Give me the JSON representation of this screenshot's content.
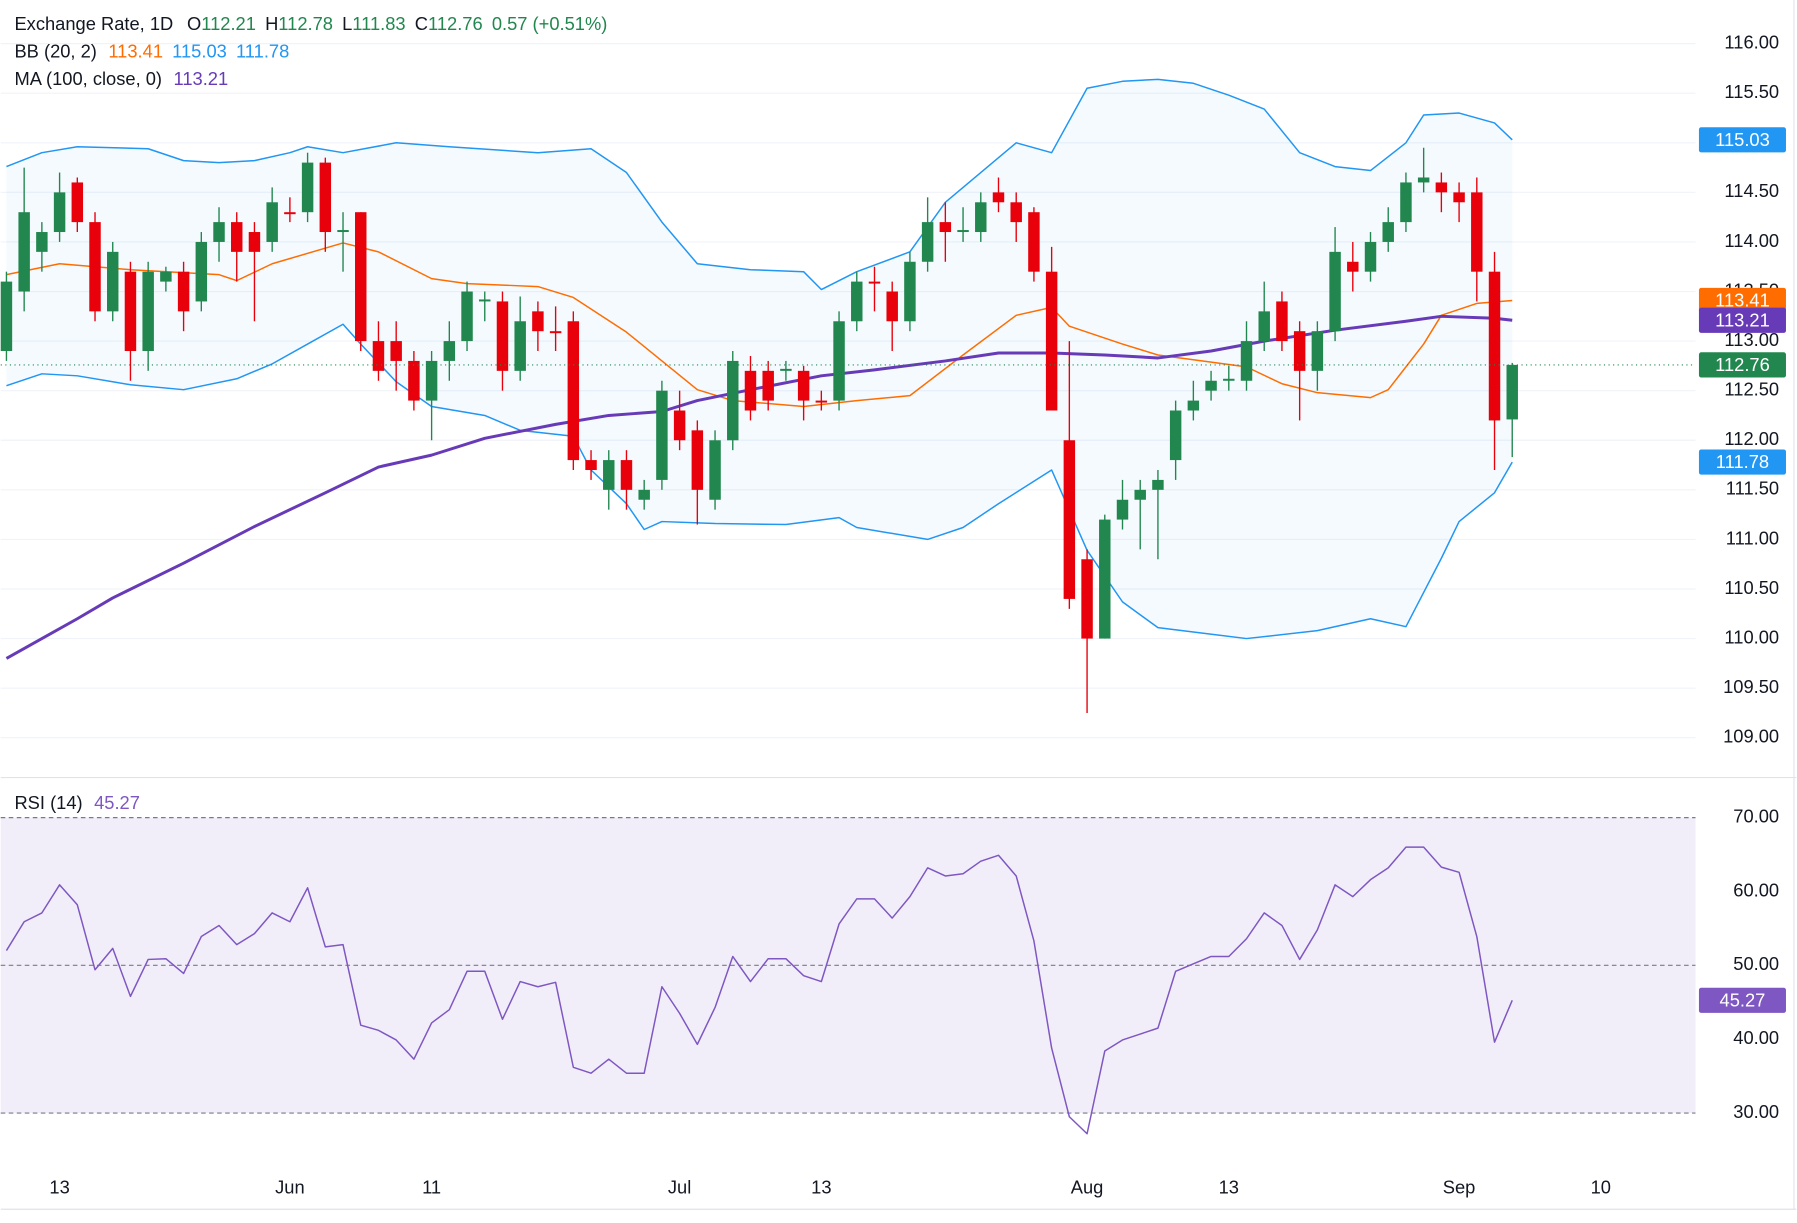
{
  "chart_data": {
    "type": "candlestick",
    "title": "Exchange Rate, 1D",
    "ohlc_keys": [
      "O",
      "H",
      "L",
      "C"
    ],
    "change": "0.57 (+0.51%)",
    "up_color": "#22874f",
    "down_color": "#e8000b",
    "categories": [
      null,
      null,
      null,
      "13",
      null,
      null,
      null,
      null,
      null,
      null,
      null,
      null,
      null,
      null,
      null,
      null,
      "Jun",
      null,
      null,
      null,
      null,
      null,
      null,
      null,
      "11",
      null,
      null,
      null,
      null,
      null,
      null,
      null,
      null,
      null,
      null,
      null,
      null,
      null,
      "Jul",
      null,
      null,
      null,
      null,
      null,
      null,
      null,
      "13",
      null,
      null,
      null,
      null,
      null,
      null,
      null,
      null,
      null,
      null,
      null,
      null,
      null,
      null,
      "Aug",
      null,
      null,
      null,
      null,
      null,
      null,
      null,
      "13",
      null,
      null,
      null,
      null,
      null,
      null,
      null,
      null,
      null,
      null,
      null,
      null,
      "Sep",
      null,
      null,
      null,
      null,
      null,
      null,
      null,
      "10"
    ],
    "open": [
      112.9,
      113.5,
      113.9,
      114.1,
      114.6,
      114.2,
      113.3,
      113.7,
      112.9,
      113.6,
      113.7,
      113.4,
      114.0,
      114.2,
      114.1,
      114.0,
      114.3,
      114.3,
      114.8,
      114.1,
      114.3,
      113.0,
      113.0,
      112.8,
      112.4,
      112.8,
      113.0,
      113.4,
      113.4,
      112.7,
      113.3,
      113.1,
      113.2,
      111.8,
      111.5,
      111.8,
      111.4,
      111.6,
      112.3,
      112.1,
      111.4,
      112.0,
      112.7,
      112.7,
      112.7,
      112.7,
      112.4,
      112.4,
      113.2,
      113.6,
      113.5,
      113.2,
      113.8,
      114.2,
      114.1,
      114.1,
      114.5,
      114.4,
      114.3,
      113.7,
      112.0,
      110.8,
      110.0,
      111.2,
      111.4,
      111.5,
      111.8,
      112.3,
      112.5,
      112.6,
      112.6,
      113.0,
      113.4,
      113.1,
      112.7,
      113.1,
      113.8,
      113.7,
      114.0,
      114.2,
      114.6,
      114.6,
      114.5,
      114.5,
      113.7,
      112.21,
      null,
      null,
      null,
      null,
      null
    ],
    "high": [
      113.7,
      114.75,
      114.2,
      114.7,
      114.65,
      114.3,
      114.0,
      113.8,
      113.8,
      113.75,
      113.8,
      114.1,
      114.35,
      114.3,
      114.2,
      114.55,
      114.45,
      114.9,
      114.85,
      114.3,
      114.3,
      113.2,
      113.2,
      112.9,
      112.9,
      113.2,
      113.6,
      113.5,
      113.5,
      113.45,
      113.4,
      113.35,
      113.3,
      111.9,
      111.9,
      111.9,
      111.6,
      112.6,
      112.5,
      112.2,
      112.1,
      112.9,
      112.85,
      112.8,
      112.8,
      112.75,
      112.5,
      113.3,
      113.7,
      113.75,
      113.6,
      113.9,
      114.45,
      114.4,
      114.35,
      114.5,
      114.65,
      114.5,
      114.35,
      113.95,
      113.0,
      110.9,
      111.25,
      111.6,
      111.6,
      111.7,
      112.4,
      112.6,
      112.7,
      112.75,
      113.2,
      113.6,
      113.5,
      113.2,
      113.2,
      114.15,
      114.0,
      114.1,
      114.35,
      114.7,
      114.95,
      114.7,
      114.6,
      114.65,
      113.9,
      112.78,
      null,
      null,
      null,
      null,
      null
    ],
    "low": [
      112.8,
      113.3,
      113.7,
      114.0,
      114.1,
      113.2,
      113.2,
      112.6,
      112.7,
      113.5,
      113.1,
      113.3,
      113.8,
      113.6,
      113.2,
      113.9,
      114.2,
      114.2,
      113.9,
      113.7,
      112.9,
      112.6,
      112.5,
      112.3,
      112.0,
      112.6,
      112.9,
      113.2,
      112.5,
      112.6,
      112.9,
      112.9,
      111.7,
      111.6,
      111.3,
      111.3,
      111.3,
      111.5,
      111.9,
      111.15,
      111.3,
      111.9,
      112.2,
      112.3,
      112.6,
      112.2,
      112.3,
      112.3,
      113.1,
      113.3,
      112.9,
      113.1,
      113.7,
      113.8,
      114.0,
      114.0,
      114.3,
      114.0,
      113.6,
      112.3,
      110.3,
      109.25,
      110.0,
      111.1,
      110.9,
      110.8,
      111.6,
      112.2,
      112.4,
      112.5,
      112.5,
      112.9,
      112.9,
      112.2,
      112.5,
      113.0,
      113.5,
      113.6,
      113.9,
      114.1,
      114.5,
      114.3,
      114.2,
      113.4,
      111.7,
      111.83,
      null,
      null,
      null,
      null,
      null
    ],
    "close": [
      113.6,
      114.3,
      114.1,
      114.5,
      114.2,
      113.3,
      113.9,
      112.9,
      113.7,
      113.7,
      113.3,
      114.0,
      114.2,
      113.9,
      113.9,
      114.4,
      114.28,
      114.8,
      114.1,
      114.12,
      113.0,
      112.7,
      112.8,
      112.4,
      112.8,
      113.0,
      113.5,
      113.42,
      112.7,
      113.2,
      113.1,
      113.08,
      111.8,
      111.7,
      111.8,
      111.5,
      111.5,
      112.5,
      112.0,
      111.5,
      112.0,
      112.8,
      112.3,
      112.4,
      112.72,
      112.4,
      112.38,
      113.2,
      113.6,
      113.58,
      113.2,
      113.8,
      114.2,
      114.1,
      114.12,
      114.4,
      114.4,
      114.2,
      113.7,
      112.3,
      110.4,
      110.0,
      111.2,
      111.4,
      111.5,
      111.6,
      112.3,
      112.4,
      112.6,
      112.62,
      113.0,
      113.3,
      113.0,
      112.7,
      113.1,
      113.9,
      113.7,
      114.0,
      114.2,
      114.6,
      114.65,
      114.5,
      114.4,
      113.7,
      112.2,
      112.76,
      null,
      null,
      null,
      null,
      null
    ],
    "ylim": [
      108.61,
      116.44
    ],
    "yticks": [
      {
        "value": 109,
        "label": "109.00"
      },
      {
        "value": 109.5,
        "label": "109.50"
      },
      {
        "value": 110,
        "label": "110.00"
      },
      {
        "value": 110.5,
        "label": "110.50"
      },
      {
        "value": 111,
        "label": "111.00"
      },
      {
        "value": 111.5,
        "label": "111.50"
      },
      {
        "value": 112,
        "label": "112.00"
      },
      {
        "value": 112.5,
        "label": "112.50"
      },
      {
        "value": 113,
        "label": "113.00"
      },
      {
        "value": 113.5,
        "label": "113.50"
      },
      {
        "value": 114,
        "label": "114.00"
      },
      {
        "value": 114.5,
        "label": "114.50"
      },
      {
        "value": 115,
        "label": "115.00"
      },
      {
        "value": 115.5,
        "label": "115.50"
      },
      {
        "value": 116,
        "label": "116.00"
      }
    ],
    "grid": true,
    "bollinger": {
      "label": "BB (20, 2)",
      "fill": "#2196f3",
      "basis": {
        "color": "#ff6d00",
        "x": [
          0,
          3,
          7,
          12,
          13,
          15,
          19,
          21,
          24,
          26,
          30,
          32,
          35,
          39,
          41,
          45,
          48,
          51,
          54,
          57,
          59,
          60,
          63,
          65,
          70,
          72,
          74,
          77,
          78,
          80,
          81,
          83,
          85
        ],
        "values": [
          113.67,
          113.78,
          113.72,
          113.67,
          113.61,
          113.78,
          113.99,
          113.9,
          113.63,
          113.58,
          113.55,
          113.44,
          113.09,
          112.51,
          112.4,
          112.34,
          112.4,
          112.45,
          112.86,
          113.26,
          113.34,
          113.15,
          112.97,
          112.86,
          112.74,
          112.57,
          112.48,
          112.43,
          112.51,
          112.97,
          113.26,
          113.38,
          113.41
        ]
      },
      "upper": {
        "color": "#2196f3",
        "x": [
          0,
          2,
          4,
          8,
          10,
          12,
          14,
          16,
          17,
          19,
          22,
          25,
          30,
          33,
          35,
          37,
          39,
          42,
          45,
          46,
          48,
          51,
          53,
          55,
          57,
          59,
          61,
          63,
          65,
          67,
          69,
          71,
          73,
          75,
          77,
          79,
          80,
          82,
          84,
          85
        ],
        "values": [
          114.76,
          114.9,
          114.96,
          114.94,
          114.82,
          114.8,
          114.82,
          114.9,
          114.96,
          114.9,
          115.0,
          114.96,
          114.9,
          114.94,
          114.7,
          114.2,
          113.78,
          113.72,
          113.7,
          113.52,
          113.7,
          113.9,
          114.4,
          114.7,
          115.0,
          114.9,
          115.55,
          115.62,
          115.64,
          115.6,
          115.48,
          115.34,
          114.9,
          114.76,
          114.72,
          115.0,
          115.28,
          115.3,
          115.2,
          115.03
        ]
      },
      "lower": {
        "color": "#2196f3",
        "x": [
          0,
          2,
          4,
          7,
          10,
          13,
          15,
          17,
          19,
          20,
          22,
          24,
          27,
          29,
          32,
          33,
          35,
          36,
          37,
          40,
          44,
          47,
          48,
          52,
          54,
          56,
          59,
          61,
          63,
          65,
          70,
          74,
          77,
          79,
          81,
          82,
          84,
          85
        ],
        "values": [
          112.55,
          112.67,
          112.65,
          112.56,
          112.51,
          112.62,
          112.77,
          112.97,
          113.17,
          112.97,
          112.59,
          112.34,
          112.25,
          112.1,
          112.04,
          111.7,
          111.36,
          111.1,
          111.18,
          111.16,
          111.15,
          111.22,
          111.12,
          111.0,
          111.12,
          111.36,
          111.7,
          110.89,
          110.37,
          110.11,
          110.0,
          110.08,
          110.2,
          110.12,
          110.81,
          111.18,
          111.47,
          111.78
        ]
      }
    },
    "ma": {
      "label": "MA (100, close, 0)",
      "color": "#673ab7",
      "x": [
        0,
        4,
        6,
        10,
        14,
        18,
        21,
        24,
        27,
        31,
        34,
        37,
        39,
        42,
        46,
        49,
        53,
        56,
        59,
        62,
        65,
        68,
        71,
        75,
        79,
        81,
        84,
        85
      ],
      "values": [
        109.8,
        110.2,
        110.41,
        110.76,
        111.13,
        111.47,
        111.73,
        111.85,
        112.02,
        112.16,
        112.25,
        112.29,
        112.4,
        112.51,
        112.65,
        112.71,
        112.8,
        112.88,
        112.88,
        112.86,
        112.83,
        112.9,
        113.0,
        113.11,
        113.2,
        113.25,
        113.23,
        113.21
      ]
    },
    "rsi": {
      "label": "RSI (14)",
      "color": "#7e57c2",
      "band_color": "#7e57c2",
      "values": [
        52.0,
        55.9,
        57.1,
        60.9,
        58.2,
        49.4,
        52.3,
        45.8,
        50.8,
        50.9,
        48.9,
        53.9,
        55.4,
        52.8,
        54.3,
        57.1,
        55.9,
        60.5,
        52.5,
        52.8,
        41.9,
        41.2,
        39.9,
        37.3,
        42.2,
        44.0,
        49.2,
        49.2,
        42.7,
        47.8,
        47.1,
        47.7,
        36.2,
        35.4,
        37.3,
        35.4,
        35.4,
        47.1,
        43.5,
        39.3,
        44.3,
        51.2,
        47.8,
        50.9,
        50.9,
        48.6,
        47.8,
        55.6,
        59.0,
        59.0,
        56.4,
        59.3,
        63.2,
        62.1,
        62.4,
        64.1,
        64.9,
        62.1,
        53.3,
        38.8,
        29.5,
        27.2,
        38.4,
        39.9,
        40.7,
        41.5,
        49.2,
        50.2,
        51.2,
        51.2,
        53.6,
        57.1,
        55.4,
        50.8,
        54.8,
        60.9,
        59.3,
        61.6,
        63.2,
        66.0,
        66.0,
        63.3,
        62.6,
        53.9,
        39.6,
        45.27,
        null,
        null,
        null,
        null,
        null
      ],
      "ylim": [
        22.56,
        75.27
      ],
      "yticks": [
        {
          "value": 30,
          "label": "30.00"
        },
        {
          "value": 40,
          "label": "40.00"
        },
        {
          "value": 50,
          "label": "50.00"
        },
        {
          "value": 60,
          "label": "60.00"
        },
        {
          "value": 70,
          "label": "70.00"
        }
      ],
      "levels": [
        30,
        50,
        70
      ],
      "band": [
        30,
        70
      ]
    }
  }
}
